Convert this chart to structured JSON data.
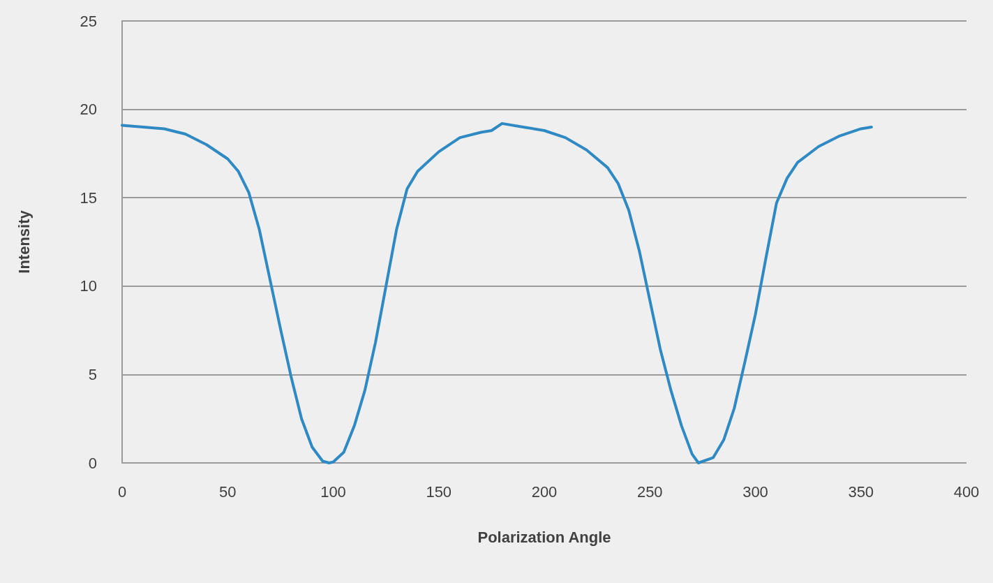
{
  "chart_data": {
    "type": "line",
    "xlabel": "Polarization Angle",
    "ylabel": "Intensity",
    "xlim": [
      0,
      400
    ],
    "xticks": [
      0,
      50,
      100,
      150,
      200,
      250,
      300,
      350,
      400
    ],
    "ylim": [
      0,
      25
    ],
    "yticks": [
      0,
      5,
      10,
      15,
      20,
      25
    ],
    "grid": "y",
    "marker": "none",
    "line_style": "solid",
    "series": [
      {
        "color": "#2f8ac4",
        "x": [
          0,
          20,
          30,
          40,
          50,
          55,
          60,
          65,
          70,
          75,
          80,
          85,
          90,
          95,
          98,
          100,
          105,
          110,
          115,
          120,
          125,
          130,
          135,
          140,
          150,
          160,
          170,
          175,
          180,
          190,
          200,
          210,
          220,
          230,
          235,
          240,
          245,
          250,
          255,
          260,
          265,
          270,
          273,
          280,
          285,
          290,
          295,
          300,
          305,
          310,
          315,
          320,
          330,
          340,
          350,
          355
        ],
        "values": [
          19.1,
          18.9,
          18.6,
          18.0,
          17.2,
          16.5,
          15.3,
          13.2,
          10.4,
          7.6,
          4.9,
          2.5,
          0.9,
          0.1,
          0,
          0.05,
          0.6,
          2.1,
          4.1,
          6.8,
          10.0,
          13.2,
          15.5,
          16.5,
          17.6,
          18.4,
          18.7,
          18.8,
          19.2,
          19.0,
          18.8,
          18.4,
          17.7,
          16.7,
          15.8,
          14.3,
          12.0,
          9.2,
          6.4,
          4.1,
          2.1,
          0.5,
          0,
          0.3,
          1.3,
          3.1,
          5.7,
          8.4,
          11.6,
          14.7,
          16.1,
          17.0,
          17.9,
          18.5,
          18.9,
          19.0
        ]
      }
    ]
  }
}
